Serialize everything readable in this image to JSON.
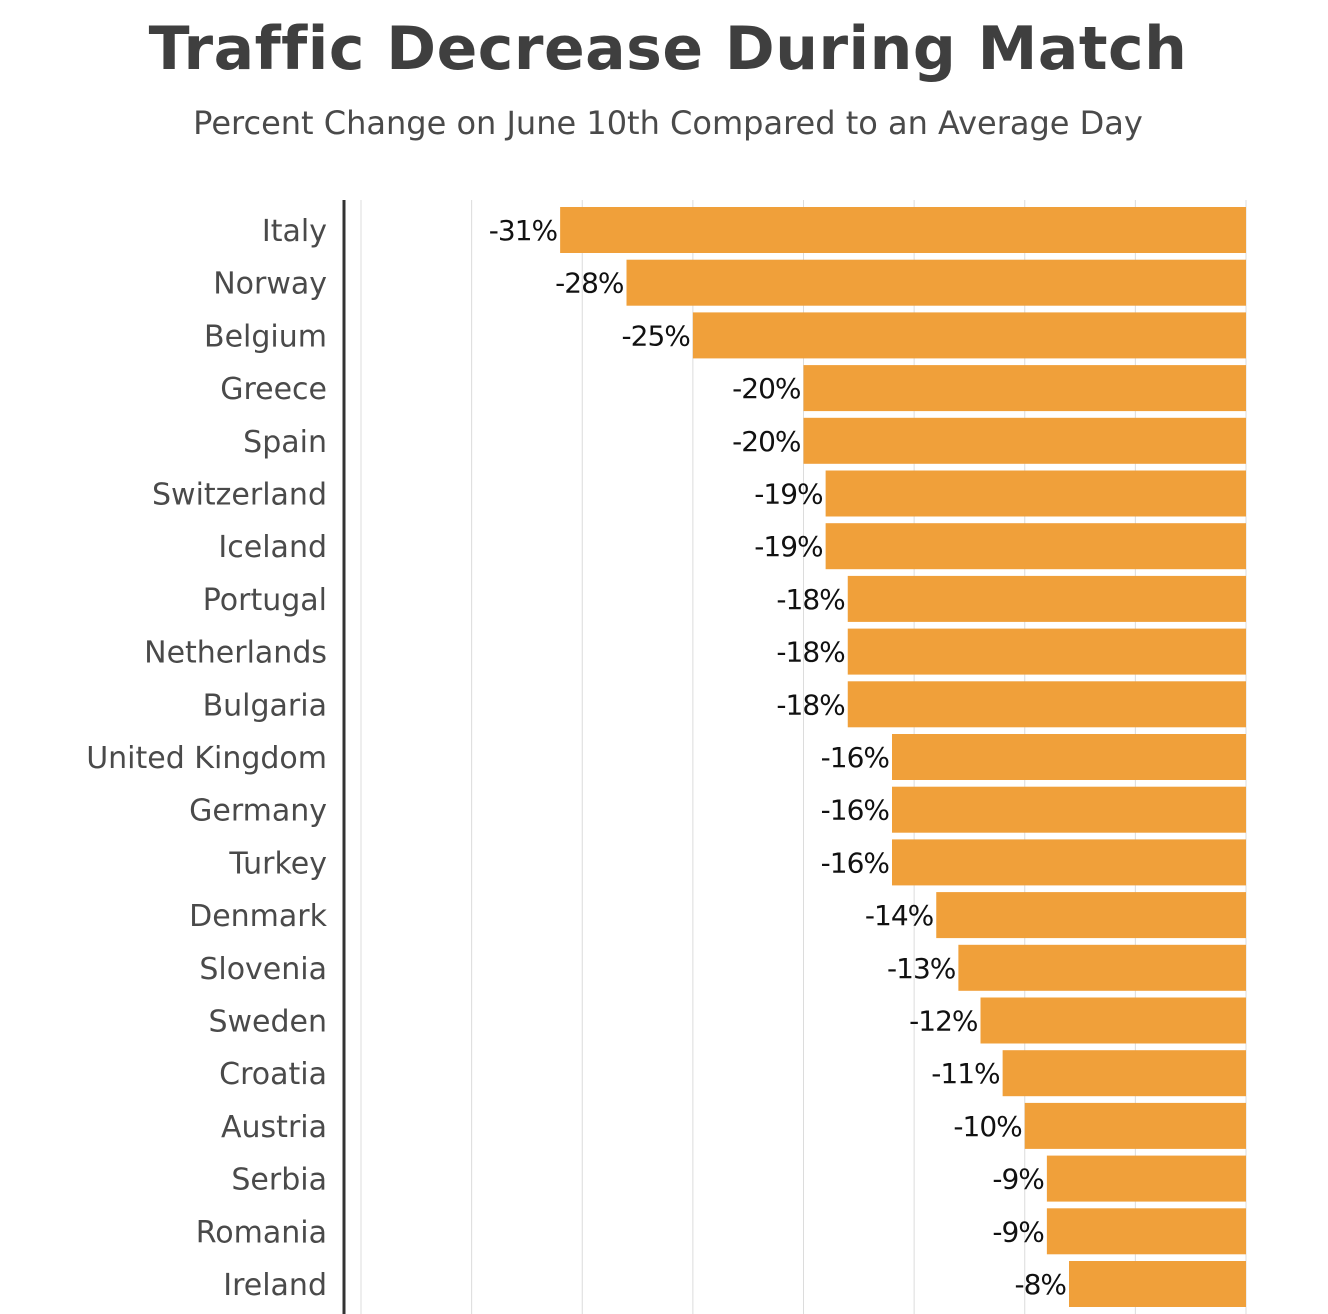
{
  "chart_data": {
    "type": "bar",
    "orientation": "horizontal",
    "title": "Traffic Decrease During Match",
    "subtitle": "Percent Change on June 10th Compared to an Average Day",
    "categories": [
      "Italy",
      "Norway",
      "Belgium",
      "Greece",
      "Spain",
      "Switzerland",
      "Iceland",
      "Portugal",
      "Netherlands",
      "Bulgaria",
      "United Kingdom",
      "Germany",
      "Turkey",
      "Denmark",
      "Slovenia",
      "Sweden",
      "Croatia",
      "Austria",
      "Serbia",
      "Romania",
      "Ireland"
    ],
    "values": [
      -31,
      -28,
      -25,
      -20,
      -20,
      -19,
      -19,
      -18,
      -18,
      -18,
      -16,
      -16,
      -16,
      -14,
      -13,
      -12,
      -11,
      -10,
      -9,
      -9,
      -8
    ],
    "data_labels": [
      "-31%",
      "-28%",
      "-25%",
      "-20%",
      "-20%",
      "-19%",
      "-19%",
      "-18%",
      "-18%",
      "-18%",
      "-16%",
      "-16%",
      "-16%",
      "-14%",
      "-13%",
      "-12%",
      "-11%",
      "-10%",
      "-9%",
      "-9%",
      "-8%"
    ],
    "xlim": [
      -40,
      0
    ],
    "grid": true,
    "gridline_step": 5,
    "bar_color": "#F0A03A"
  }
}
